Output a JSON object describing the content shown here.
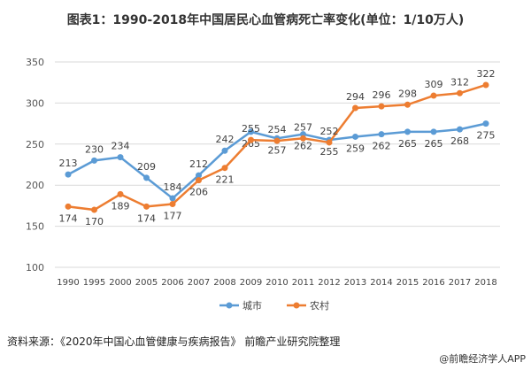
{
  "title": "图表1：1990-2018年中国居民心血管病死亡率变化(单位：1/10万人)",
  "source": "资料来源：《2020年中国心血管健康与疾病报告》 前瞻产业研究院整理",
  "credit": "@前瞻经济学人APP",
  "chart_data": {
    "type": "line",
    "title": "图表1：1990-2018年中国居民心血管病死亡率变化(单位：1/10万人)",
    "categories": [
      "1990",
      "1995",
      "2000",
      "2005",
      "2006",
      "2007",
      "2008",
      "2009",
      "2010",
      "2011",
      "2012",
      "2013",
      "2014",
      "2015",
      "2016",
      "2017",
      "2018"
    ],
    "series": [
      {
        "name": "城市",
        "color": "#5b9bd5",
        "values": [
          213,
          230,
          234,
          209,
          184,
          212,
          242,
          265,
          257,
          262,
          255,
          259,
          262,
          265,
          265,
          268,
          275
        ]
      },
      {
        "name": "农村",
        "color": "#ed7d31",
        "values": [
          174,
          170,
          189,
          174,
          177,
          206,
          221,
          255,
          254,
          257,
          252,
          294,
          296,
          298,
          309,
          312,
          322
        ]
      }
    ],
    "ylim": [
      100,
      350
    ],
    "yticks": [
      100,
      150,
      200,
      250,
      300,
      350
    ],
    "grid": true,
    "legend": "bottom"
  }
}
